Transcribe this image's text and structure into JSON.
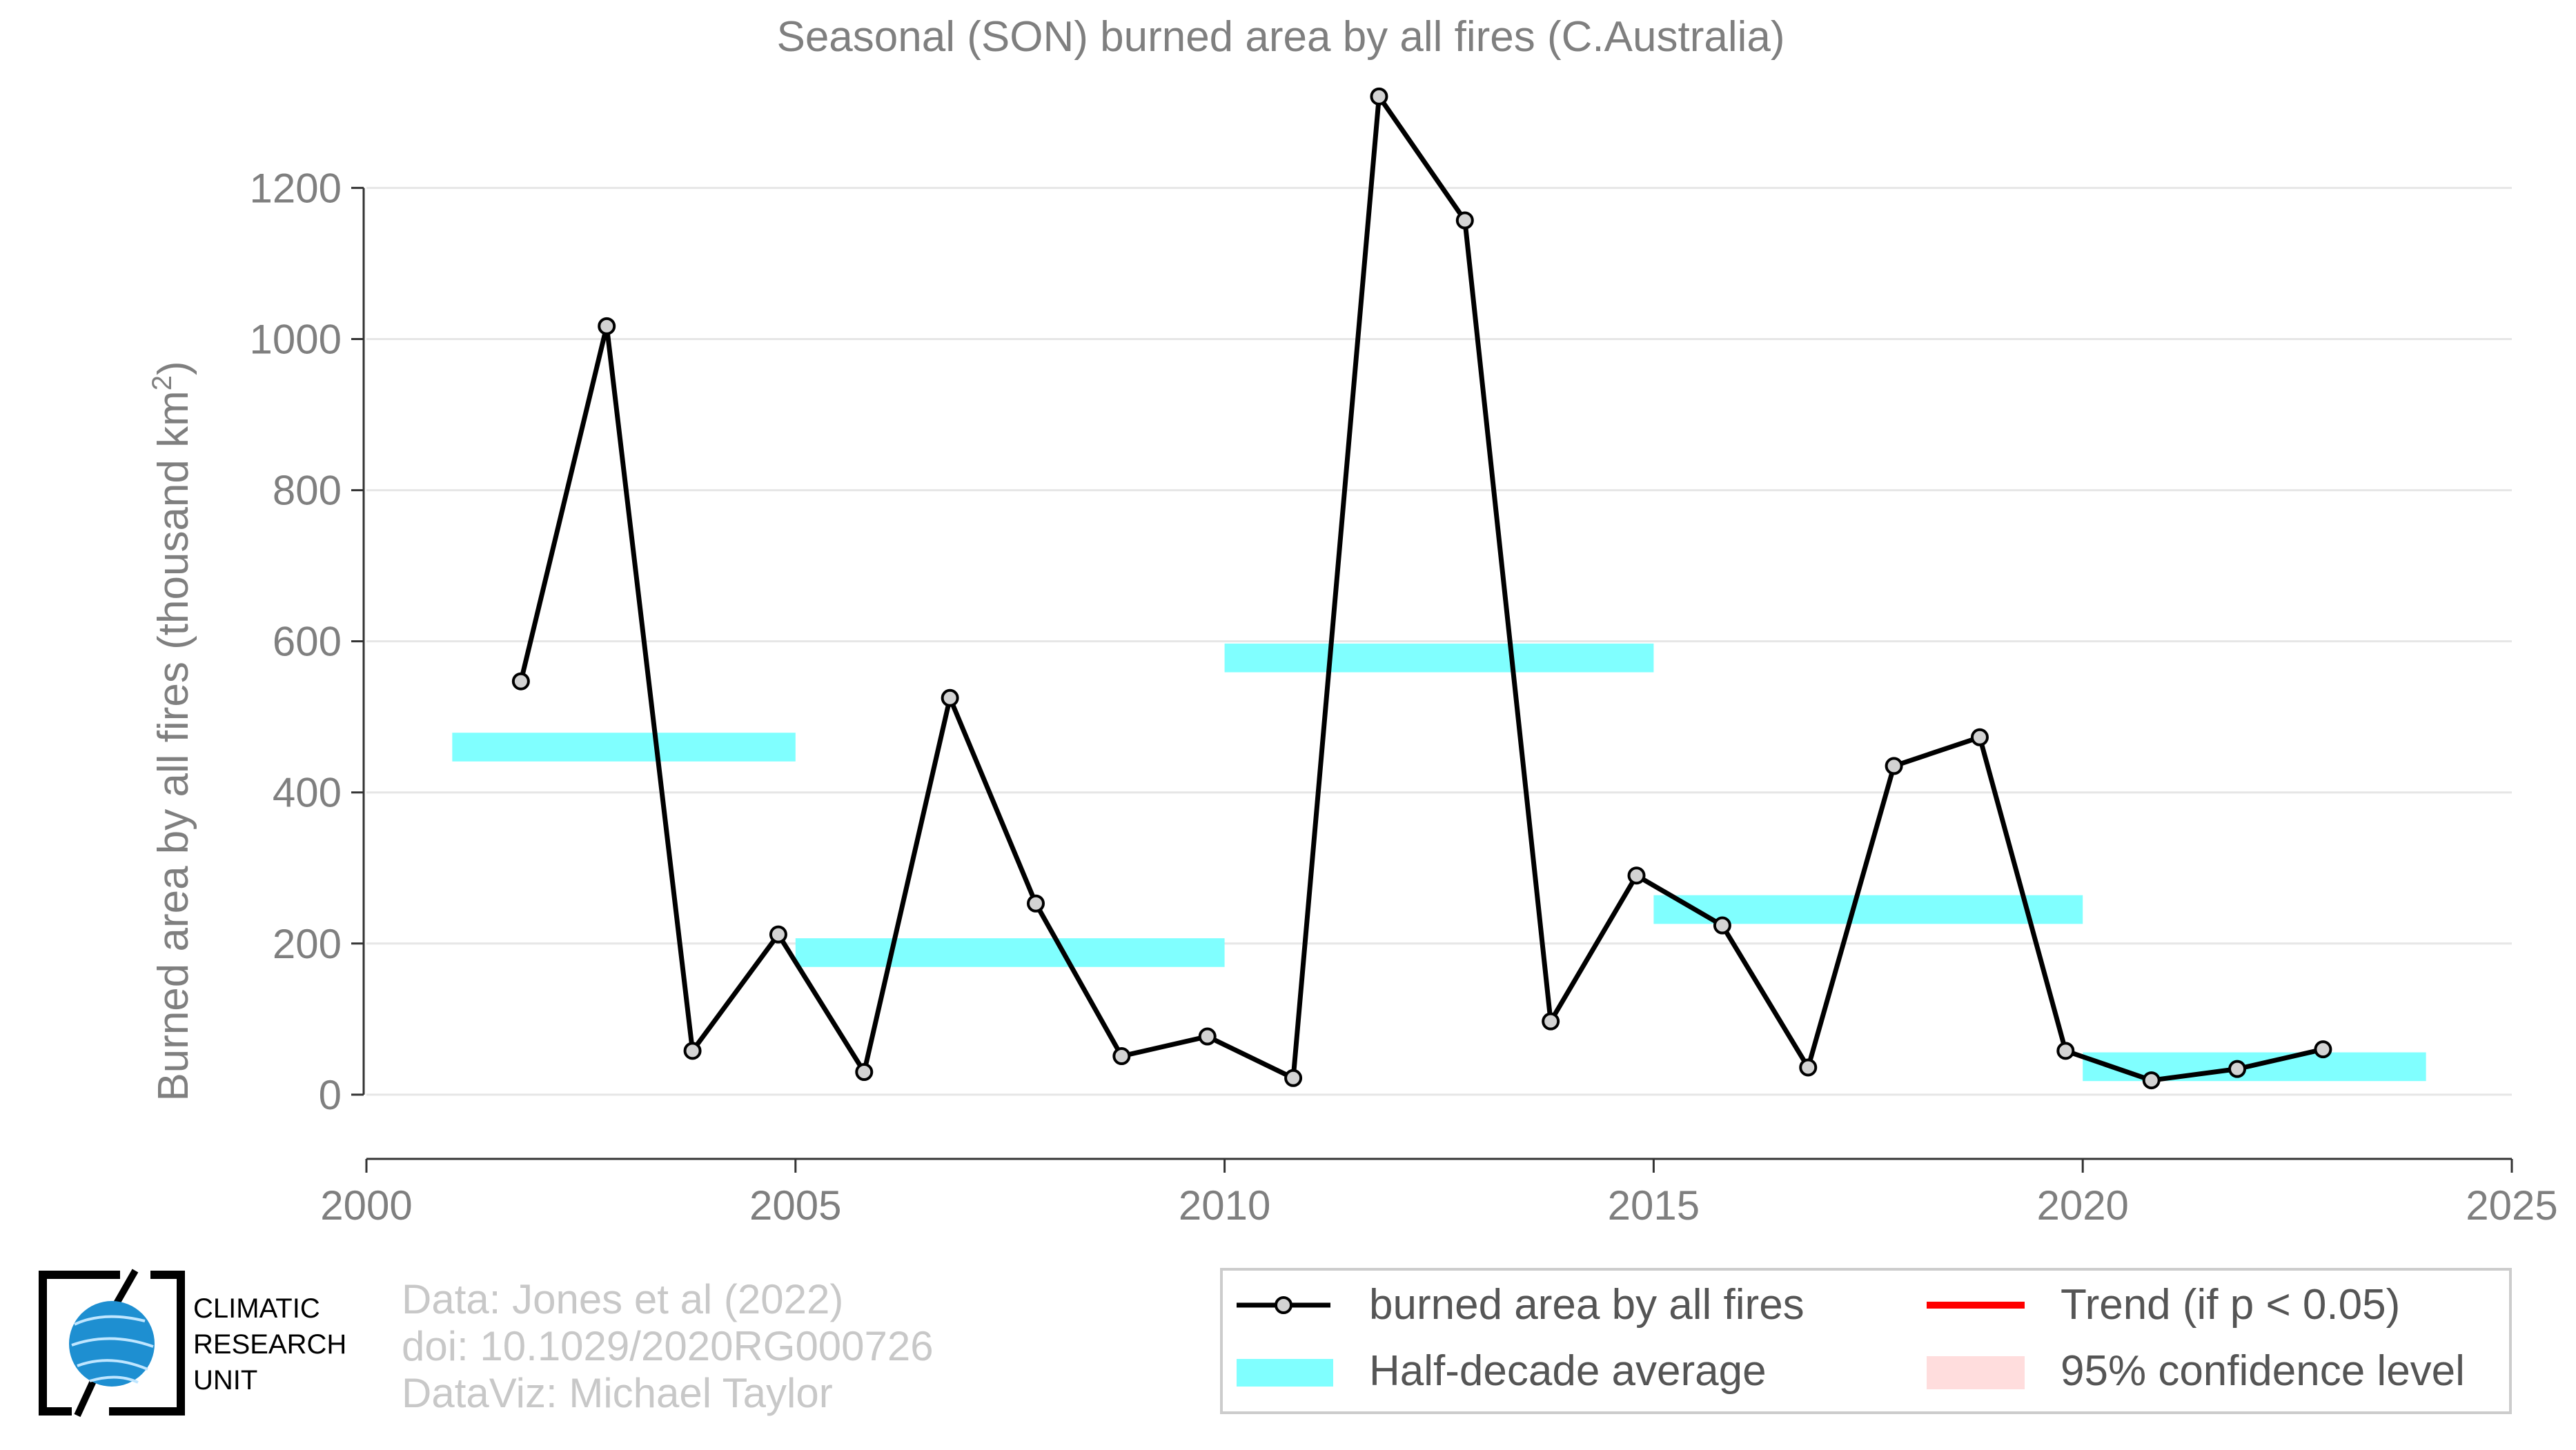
{
  "chart_data": {
    "type": "line",
    "title": "Seasonal (SON) burned area by all fires (C.Australia)",
    "ylabel": "Burned area by all fires (thousand km",
    "ylabel_superscript": "2",
    "ylabel_close": ")",
    "xlim": [
      2000,
      2025
    ],
    "ylim": [
      -85,
      1330
    ],
    "xticks": [
      2000,
      2005,
      2010,
      2015,
      2020,
      2025
    ],
    "yticks": [
      0,
      200,
      400,
      600,
      800,
      1000,
      1200
    ],
    "grid": "horizontal",
    "series": [
      {
        "name": "burned area by all fires",
        "color": "#000000",
        "marker_fill": "#d3d3d3",
        "x": [
          2001.8,
          2002.8,
          2003.8,
          2004.8,
          2005.8,
          2006.8,
          2007.8,
          2008.8,
          2009.8,
          2010.8,
          2011.8,
          2012.8,
          2013.8,
          2014.8,
          2015.8,
          2016.8,
          2017.8,
          2018.8,
          2019.8,
          2020.8,
          2021.8,
          2022.8
        ],
        "y": [
          547,
          1017,
          58,
          212,
          30,
          525,
          253,
          51,
          77,
          22,
          1321,
          1157,
          97,
          290,
          224,
          36,
          435,
          473,
          58,
          19,
          34,
          60
        ]
      }
    ],
    "half_decade_average": {
      "name": "Half-decade average",
      "color": "#80ffff",
      "segments": [
        {
          "x": [
            2001,
            2005
          ],
          "y": 460
        },
        {
          "x": [
            2005,
            2010
          ],
          "y": 188
        },
        {
          "x": [
            2010,
            2015
          ],
          "y": 578
        },
        {
          "x": [
            2015,
            2020
          ],
          "y": 245
        },
        {
          "x": [
            2020,
            2024
          ],
          "y": 37
        }
      ]
    },
    "legend": {
      "placement": "bottom-right",
      "items": [
        {
          "label": "burned area by all fires",
          "kind": "line-marker",
          "color": "#000000"
        },
        {
          "label": "Trend (if p < 0.05)",
          "kind": "line",
          "color": "#ff0000"
        },
        {
          "label": "Half-decade average",
          "kind": "band",
          "color": "#80ffff"
        },
        {
          "label": "95% confidence level",
          "kind": "band",
          "color": "#ffd9d9"
        }
      ]
    }
  },
  "credits": {
    "line1": "Data: Jones et al (2022)",
    "line2": "doi: 10.1029/2020RG000726",
    "line3": "DataViz: Michael Taylor"
  },
  "logo": {
    "line1": "CLIMATIC",
    "line2": "RESEARCH",
    "line3": "UNIT"
  }
}
